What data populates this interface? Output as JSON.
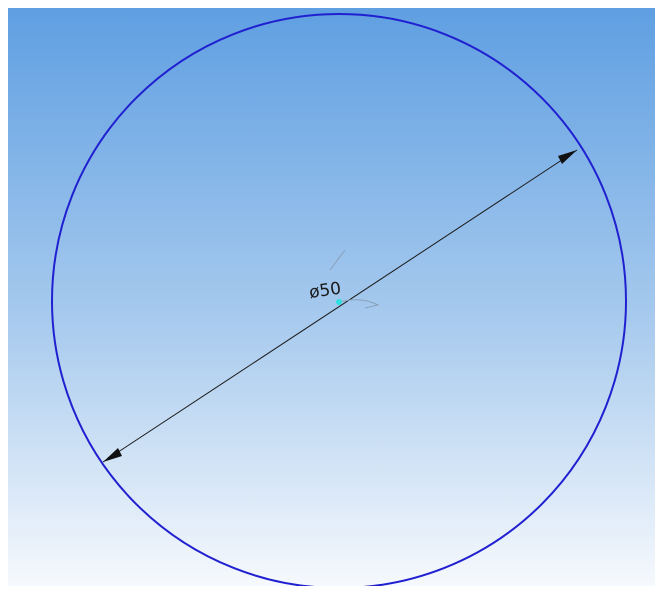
{
  "dimension": {
    "label": "ø50"
  }
}
